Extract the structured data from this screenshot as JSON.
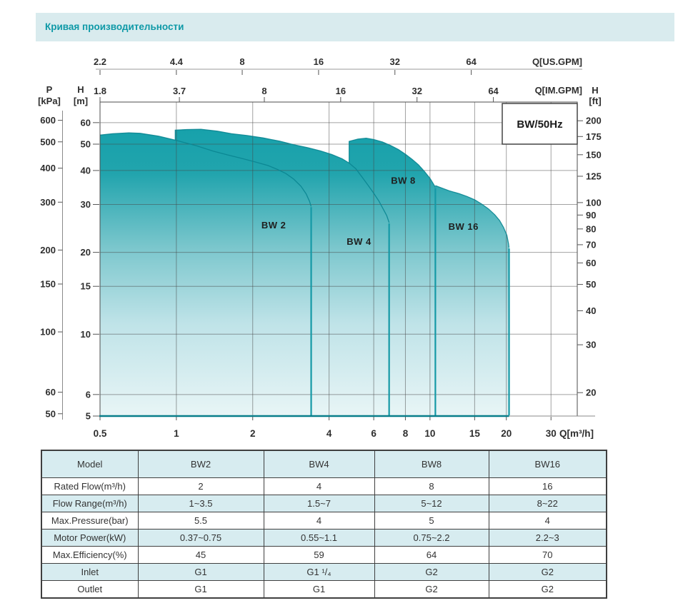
{
  "page_header": {
    "title": "Кривая производительности"
  },
  "colors": {
    "header_bg": "#d9ebee",
    "header_text": "#0e99a7",
    "fill_top": "#17a1ab",
    "fill_mid": "#7cc7cd",
    "fill_low": "#bfe3e8",
    "fill_bottom": "#e8f5f6",
    "curve_stroke": "#0a8591",
    "edge_stroke": "#1599a6",
    "baseline": "#087e8a",
    "table_band": "#d7ecf0",
    "grid": "#6b6b6b"
  },
  "chart_data": {
    "type": "area",
    "title_box": "BW/50Hz",
    "x_axis_m3h": {
      "label": "Q[m³/h]",
      "ticks": [
        0.5,
        1,
        2,
        4,
        6,
        8,
        10,
        15,
        20,
        30
      ]
    },
    "x_axis_usgpm": {
      "label": "Q[US.GPM]",
      "ticks": [
        2.2,
        4.4,
        8,
        16,
        32,
        64
      ]
    },
    "x_axis_imgpm": {
      "label": "Q[IM.GPM]",
      "ticks": [
        1.8,
        3.7,
        8,
        16,
        32,
        64
      ]
    },
    "y_axis_m": {
      "label_top": "H",
      "label_unit": "[m]",
      "ticks": [
        60,
        50,
        40,
        30,
        20,
        15,
        10,
        6,
        5
      ]
    },
    "y_axis_kpa": {
      "label_top": "P",
      "label_unit": "[kPa]",
      "ticks": [
        600,
        500,
        400,
        300,
        200,
        150,
        100,
        60,
        50
      ]
    },
    "y_axis_ft": {
      "label_top": "H",
      "label_unit": "[ft]",
      "ticks": [
        200,
        175,
        150,
        125,
        100,
        90,
        80,
        70,
        60,
        50,
        40,
        30,
        20
      ]
    },
    "grid_q": [
      1,
      2,
      4,
      6,
      8,
      10,
      15,
      20,
      30
    ],
    "grid_h": [
      60,
      50,
      40,
      30,
      20,
      15,
      10,
      6
    ],
    "x_range_m3h": [
      0.5,
      30
    ],
    "y_range_m": [
      5,
      60
    ],
    "series": [
      {
        "name": "BW 2",
        "label_at": [
          2.42,
          24.5
        ],
        "max_q": 3.4,
        "step_from_h": null,
        "points": [
          [
            0.5,
            54
          ],
          [
            0.56,
            54.6
          ],
          [
            0.65,
            55
          ],
          [
            0.72,
            54.8
          ],
          [
            0.85,
            53.5
          ],
          [
            1.0,
            51.6
          ],
          [
            1.2,
            49.3
          ],
          [
            1.4,
            47.1
          ],
          [
            1.6,
            45.6
          ],
          [
            1.8,
            44.4
          ],
          [
            2.05,
            43
          ],
          [
            2.3,
            41.7
          ],
          [
            2.5,
            40.4
          ],
          [
            2.7,
            39
          ],
          [
            2.9,
            37.2
          ],
          [
            3.1,
            35
          ],
          [
            3.25,
            32.8
          ],
          [
            3.35,
            30.8
          ],
          [
            3.4,
            29.5
          ]
        ]
      },
      {
        "name": "BW 4",
        "label_at": [
          5.25,
          21.3
        ],
        "max_q": 6.9,
        "step_from_h": 51.6,
        "points": [
          [
            0.99,
            56.3
          ],
          [
            1.1,
            56.6
          ],
          [
            1.25,
            56.7
          ],
          [
            1.45,
            55.8
          ],
          [
            1.65,
            54.6
          ],
          [
            1.9,
            53.8
          ],
          [
            2.2,
            52.7
          ],
          [
            2.55,
            51.3
          ],
          [
            2.9,
            49.8
          ],
          [
            3.3,
            48.5
          ],
          [
            3.7,
            47.2
          ],
          [
            4.1,
            45.8
          ],
          [
            4.5,
            44.2
          ],
          [
            4.8,
            42.6
          ],
          [
            5.1,
            40.6
          ],
          [
            5.4,
            37.8
          ],
          [
            5.7,
            35.3
          ],
          [
            6.0,
            33
          ],
          [
            6.3,
            30.8
          ],
          [
            6.55,
            28.8
          ],
          [
            6.75,
            27.3
          ],
          [
            6.9,
            25.7
          ]
        ]
      },
      {
        "name": "BW 8",
        "label_at": [
          7.85,
          35.8
        ],
        "max_q": 10.5,
        "step_from_h": 42.6,
        "points": [
          [
            4.8,
            51.2
          ],
          [
            5.2,
            52.2
          ],
          [
            5.6,
            52.6
          ],
          [
            6.0,
            52
          ],
          [
            6.5,
            50.9
          ],
          [
            7.0,
            49.4
          ],
          [
            7.5,
            47.8
          ],
          [
            8.0,
            45.9
          ],
          [
            8.5,
            44
          ],
          [
            9.0,
            42
          ],
          [
            9.5,
            39.7
          ],
          [
            10.0,
            37.4
          ],
          [
            10.3,
            35.8
          ],
          [
            10.5,
            34.7
          ]
        ]
      },
      {
        "name": "BW 16",
        "label_at": [
          13.55,
          24.2
        ],
        "max_q": 20.5,
        "step_from_h": null,
        "points": [
          [
            10.5,
            35.2
          ],
          [
            11.2,
            34.4
          ],
          [
            12,
            33.6
          ],
          [
            13,
            32.9
          ],
          [
            14,
            32.1
          ],
          [
            15,
            31.2
          ],
          [
            16,
            30.1
          ],
          [
            17,
            28.9
          ],
          [
            18,
            27.5
          ],
          [
            18.8,
            26.2
          ],
          [
            19.5,
            24.7
          ],
          [
            20.1,
            23.1
          ],
          [
            20.4,
            21.5
          ],
          [
            20.5,
            20.8
          ]
        ]
      }
    ]
  },
  "table": {
    "col_headers": [
      "Model",
      "BW2",
      "BW4",
      "BW8",
      "BW16"
    ],
    "rows": [
      {
        "label": "Rated Flow(m³/h)",
        "values": [
          "2",
          "4",
          "8",
          "16"
        ]
      },
      {
        "label": "Flow Range(m³/h)",
        "values": [
          "1~3.5",
          "1.5~7",
          "5~12",
          "8~22"
        ]
      },
      {
        "label": "Max.Pressure(bar)",
        "values": [
          "5.5",
          "4",
          "5",
          "4"
        ]
      },
      {
        "label": "Motor Power(kW)",
        "values": [
          "0.37~0.75",
          "0.55~1.1",
          "0.75~2.2",
          "2.2~3"
        ]
      },
      {
        "label": "Max.Efficiency(%)",
        "values": [
          "45",
          "59",
          "64",
          "70"
        ]
      },
      {
        "label": "Inlet",
        "values": [
          "G1",
          "G1 ¹/₄",
          "G2",
          "G2"
        ]
      },
      {
        "label": "Outlet",
        "values": [
          "G1",
          "G1",
          "G2",
          "G2"
        ]
      }
    ]
  }
}
